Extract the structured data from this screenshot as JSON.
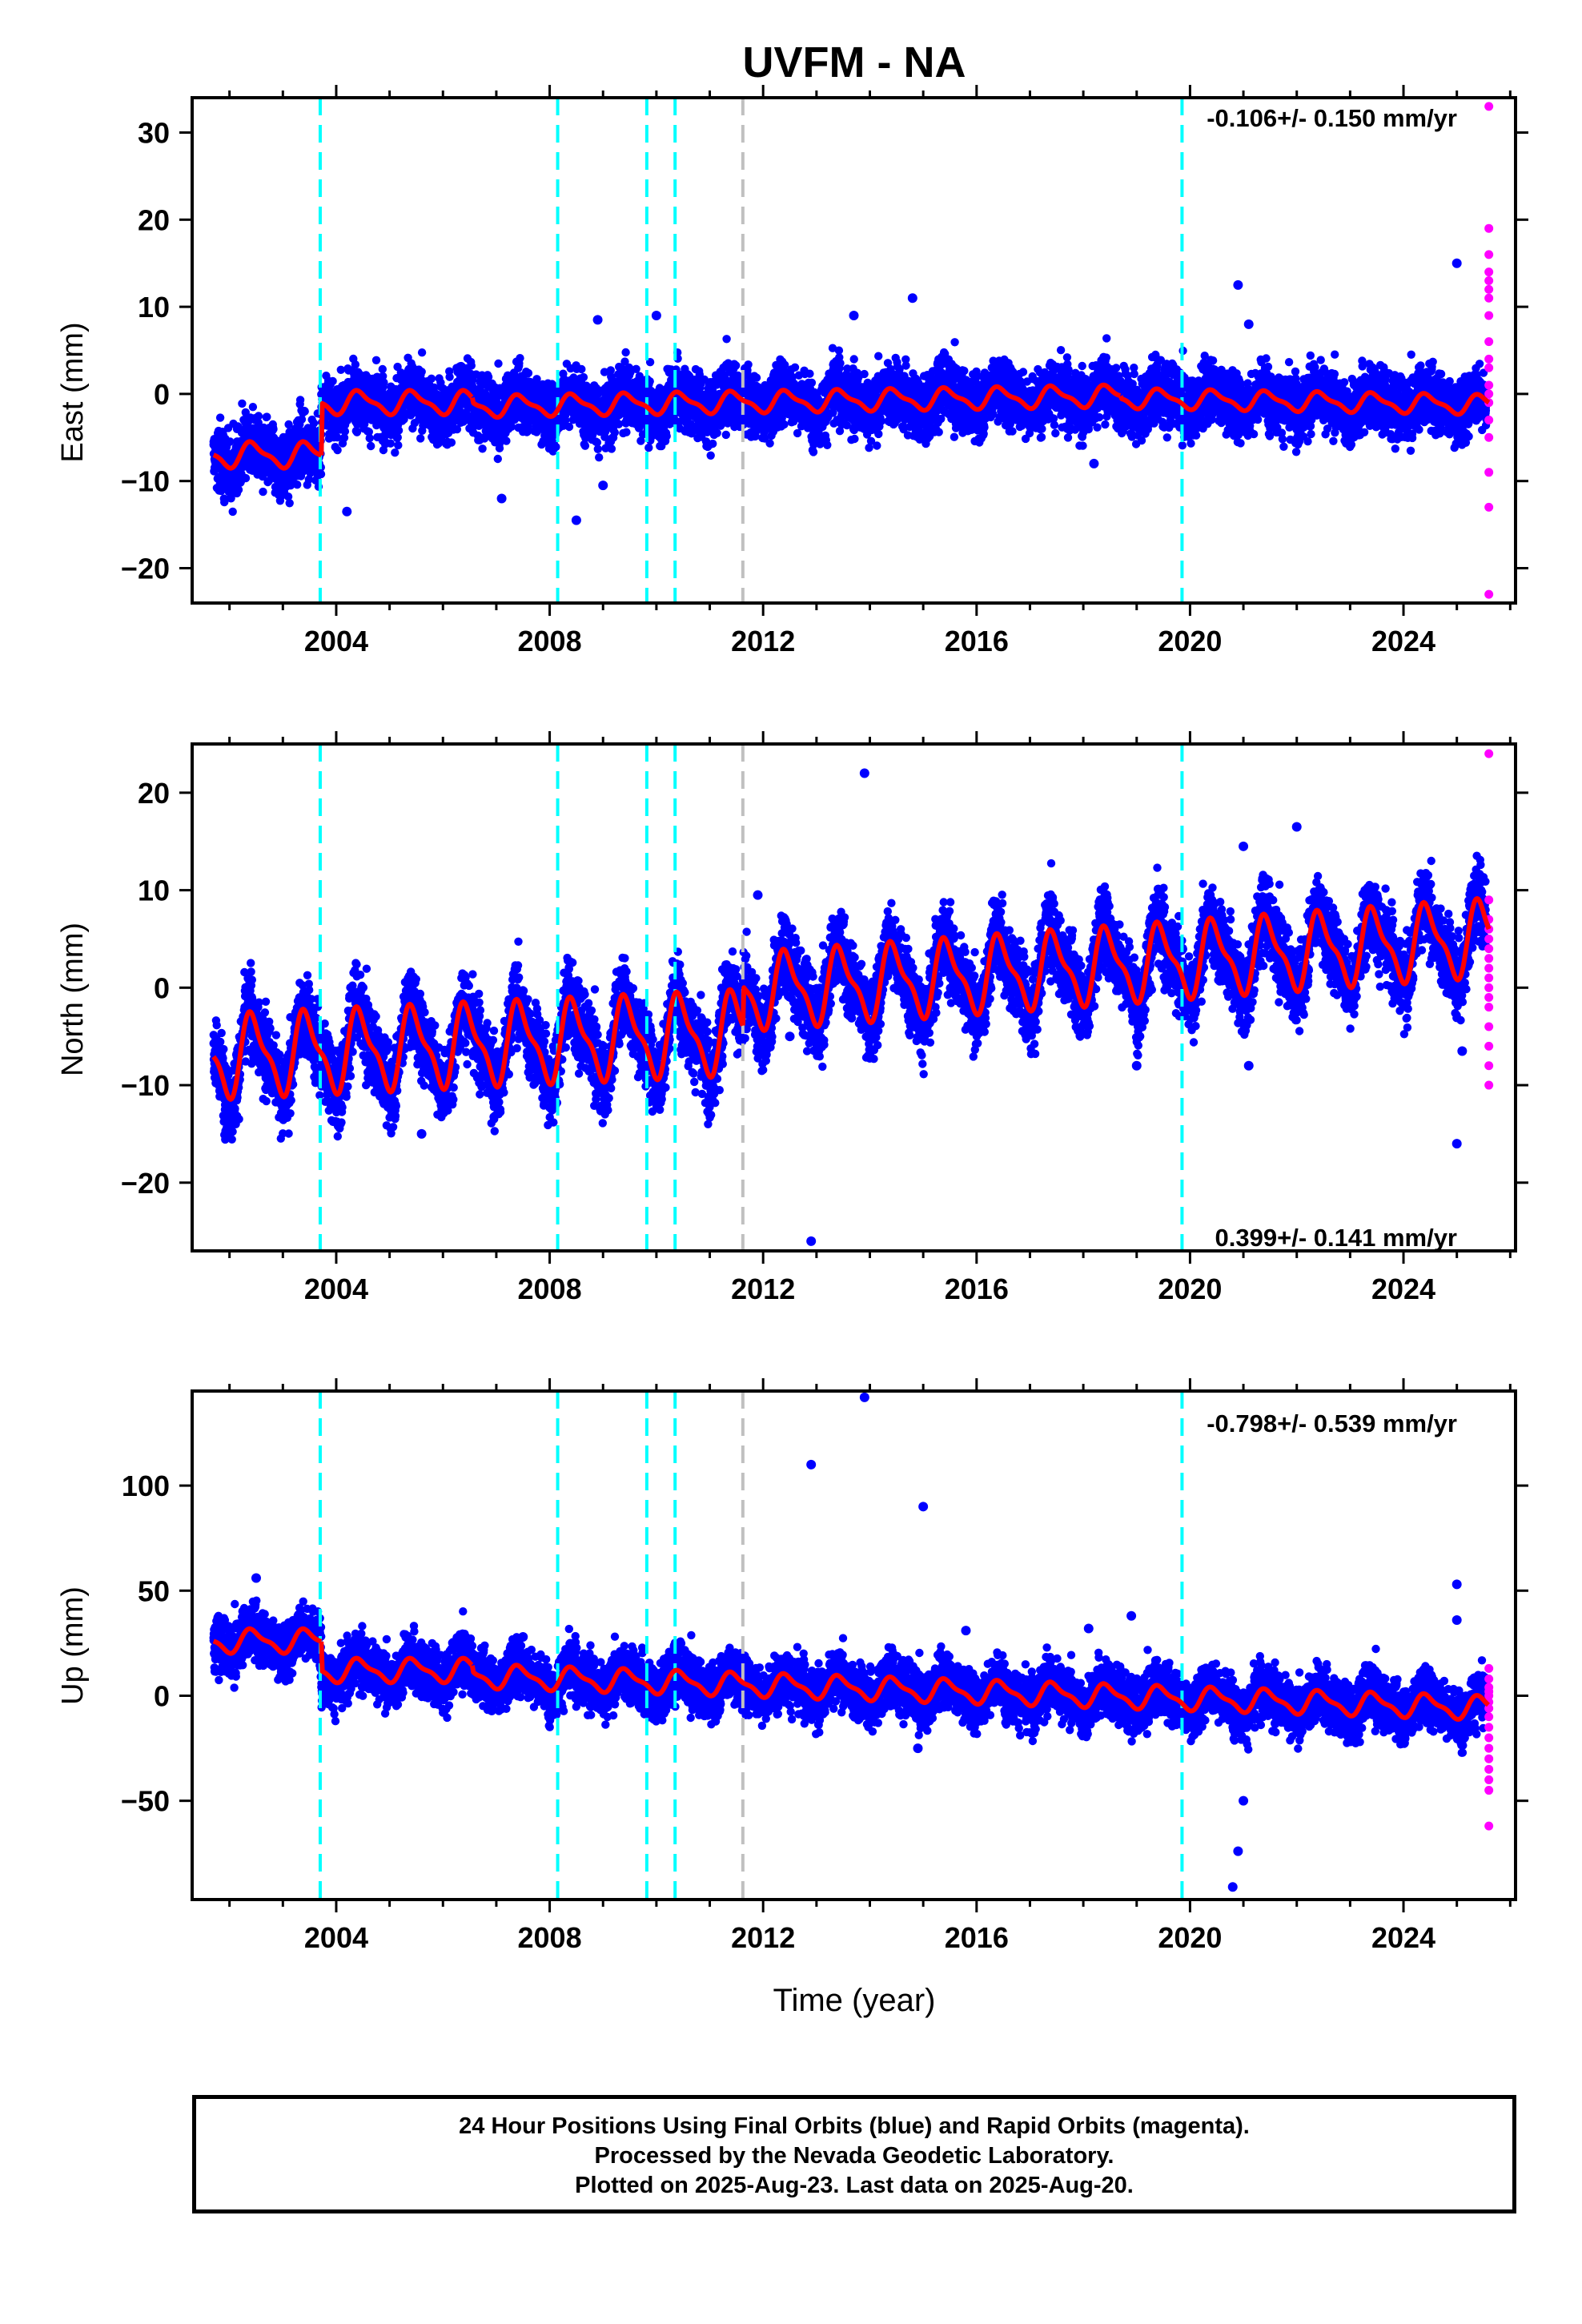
{
  "title": "UVFM - NA",
  "xlabel": "Time (year)",
  "colors": {
    "final_orbits": "#0000ff",
    "rapid_orbits": "#ff00ff",
    "model": "#ff0000",
    "equipment_change": "#00ffff",
    "earthquake": "#c0c0c0",
    "axes": "#000000"
  },
  "caption": {
    "line1": "24 Hour Positions Using Final Orbits (blue) and Rapid Orbits (magenta).",
    "line2": "Processed by the Nevada Geodetic Laboratory.",
    "line3": "Plotted on 2025-Aug-23. Last data on 2025-Aug-20."
  },
  "chart_data": [
    {
      "type": "scatter",
      "component": "east",
      "ylabel": "East (mm)",
      "rate_label": "-0.106+/- 0.150 mm/yr",
      "rate_position": "top-right",
      "xlim": [
        2001.3,
        2026.1
      ],
      "ylim": [
        -24,
        34
      ],
      "yticks": [
        -20,
        -10,
        0,
        10,
        20,
        30
      ],
      "xticks": [
        2004,
        2008,
        2012,
        2016,
        2020,
        2024
      ],
      "xtick_labels": [
        "2004",
        "2008",
        "2012",
        "2016",
        "2020",
        "2024"
      ],
      "grid": false,
      "vlines_cyan": [
        2003.7,
        2008.15,
        2009.82,
        2010.35,
        2019.85
      ],
      "vlines_gray": [
        2011.62
      ],
      "model_segments": [
        {
          "t0": 2001.7,
          "t1": 2003.72,
          "offset": -7.0,
          "trend": 0,
          "amp": 1.3
        },
        {
          "t0": 2003.72,
          "t1": 2006.55,
          "offset": -1.0,
          "trend": 0,
          "amp": 1.2
        },
        {
          "t0": 2006.55,
          "t1": 2018.7,
          "offset": -0.9,
          "trend": 0.1,
          "amp": 1.1
        },
        {
          "t0": 2018.7,
          "t1": 2025.6,
          "offset": 0.2,
          "trend": -0.106,
          "amp": 1.0
        }
      ],
      "final_orbits": {
        "t_start": 2001.7,
        "t_end": 2025.55,
        "scatter_sd": 1.8
      },
      "rapid_orbits": {
        "t": 2025.6,
        "values": [
          33,
          19,
          16,
          14,
          13,
          12,
          11,
          9,
          6,
          4,
          3,
          1,
          0,
          -1,
          -3,
          -5,
          -9,
          -13,
          -23
        ]
      },
      "outliers": [
        {
          "t": 2004.2,
          "v": -13.5
        },
        {
          "t": 2007.1,
          "v": -12
        },
        {
          "t": 2008.5,
          "v": -14.5
        },
        {
          "t": 2009.0,
          "v": -10.5
        },
        {
          "t": 2008.9,
          "v": 8.5
        },
        {
          "t": 2010.0,
          "v": 9
        },
        {
          "t": 2013.7,
          "v": 9
        },
        {
          "t": 2014.8,
          "v": 11
        },
        {
          "t": 2020.9,
          "v": 12.5
        },
        {
          "t": 2021.1,
          "v": 8
        },
        {
          "t": 2025.0,
          "v": 15
        },
        {
          "t": 2018.2,
          "v": -8
        }
      ]
    },
    {
      "type": "scatter",
      "component": "north",
      "ylabel": "North (mm)",
      "rate_label": "0.399+/- 0.141 mm/yr",
      "rate_position": "bottom-right",
      "xlim": [
        2001.3,
        2026.1
      ],
      "ylim": [
        -27,
        25
      ],
      "yticks": [
        -20,
        -10,
        0,
        10,
        20
      ],
      "xticks": [
        2004,
        2008,
        2012,
        2016,
        2020,
        2024
      ],
      "xtick_labels": [
        "2004",
        "2008",
        "2012",
        "2016",
        "2020",
        "2024"
      ],
      "grid": false,
      "vlines_cyan": [
        2003.7,
        2008.15,
        2009.82,
        2010.35,
        2019.85
      ],
      "vlines_gray": [
        2011.62
      ],
      "model_segments": [
        {
          "t0": 2001.7,
          "t1": 2011.62,
          "offset": -4.5,
          "trend": 0.25,
          "amp": 3.8
        },
        {
          "t0": 2011.62,
          "t1": 2025.6,
          "offset": -0.3,
          "trend": 0.399,
          "amp": 3.5
        }
      ],
      "final_orbits": {
        "t_start": 2001.7,
        "t_end": 2025.55,
        "scatter_sd": 2.0
      },
      "rapid_orbits": {
        "t": 2025.6,
        "values": [
          24,
          9,
          7,
          6,
          5,
          4,
          3,
          2,
          1,
          0,
          -1,
          -2,
          -4,
          -6,
          -8,
          -10
        ]
      },
      "outliers": [
        {
          "t": 2013.9,
          "v": 22
        },
        {
          "t": 2011.9,
          "v": 9.5
        },
        {
          "t": 2012.9,
          "v": -26
        },
        {
          "t": 2022.0,
          "v": 16.5
        },
        {
          "t": 2021.0,
          "v": 14.5
        },
        {
          "t": 2025.0,
          "v": -16
        },
        {
          "t": 2025.1,
          "v": -6.5
        },
        {
          "t": 2019.0,
          "v": -8
        },
        {
          "t": 2021.1,
          "v": -8
        },
        {
          "t": 2005.6,
          "v": -15
        },
        {
          "t": 2010.1,
          "v": -10.5
        },
        {
          "t": 2012.5,
          "v": -5
        }
      ]
    },
    {
      "type": "scatter",
      "component": "up",
      "ylabel": "Up (mm)",
      "rate_label": "-0.798+/- 0.539 mm/yr",
      "rate_position": "top-right",
      "xlim": [
        2001.3,
        2026.1
      ],
      "ylim": [
        -97,
        145
      ],
      "yticks": [
        -50,
        0,
        50,
        100
      ],
      "xticks": [
        2004,
        2008,
        2012,
        2016,
        2020,
        2024
      ],
      "xtick_labels": [
        "2004",
        "2008",
        "2012",
        "2016",
        "2020",
        "2024"
      ],
      "grid": false,
      "vlines_cyan": [
        2003.7,
        2008.15,
        2009.82,
        2010.35,
        2019.85
      ],
      "vlines_gray": [
        2011.62
      ],
      "model_segments": [
        {
          "t0": 2001.7,
          "t1": 2003.72,
          "offset": 26,
          "trend": 0,
          "amp": 5
        },
        {
          "t0": 2003.72,
          "t1": 2006.55,
          "offset": 12,
          "trend": 0,
          "amp": 5
        },
        {
          "t0": 2006.55,
          "t1": 2025.6,
          "offset": 5,
          "trend": -0.798,
          "amp": 5
        }
      ],
      "final_orbits": {
        "t_start": 2001.7,
        "t_end": 2025.55,
        "scatter_sd": 6.5
      },
      "rapid_orbits": {
        "t": 2025.6,
        "values": [
          13,
          8,
          4,
          2,
          0,
          -3,
          -6,
          -10,
          -15,
          -20,
          -25,
          -30,
          -35,
          -40,
          -45,
          -62
        ]
      },
      "outliers": [
        {
          "t": 2013.9,
          "v": 142
        },
        {
          "t": 2012.9,
          "v": 110
        },
        {
          "t": 2015.0,
          "v": 90
        },
        {
          "t": 2002.5,
          "v": 56
        },
        {
          "t": 2025.0,
          "v": 53
        },
        {
          "t": 2025.0,
          "v": 36
        },
        {
          "t": 2018.9,
          "v": 38
        },
        {
          "t": 2018.1,
          "v": 32
        },
        {
          "t": 2015.8,
          "v": 31
        },
        {
          "t": 2021.0,
          "v": -50
        },
        {
          "t": 2020.9,
          "v": -74
        },
        {
          "t": 2020.8,
          "v": -91
        },
        {
          "t": 2007.5,
          "v": 28
        },
        {
          "t": 2014.9,
          "v": -25
        }
      ]
    }
  ]
}
